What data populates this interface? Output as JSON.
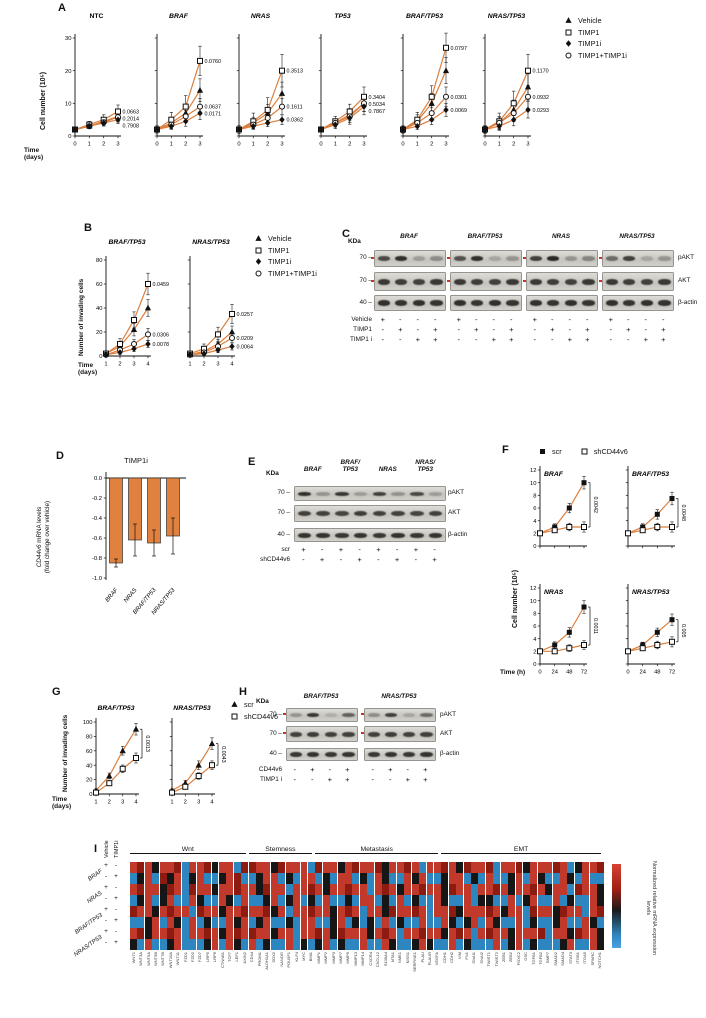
{
  "style": {
    "line": "#db7f3e",
    "bar": "#e0813f",
    "marker": "#111111",
    "heat": {
      "R": "#8e1b10",
      "r": "#c0392b",
      "k": "#161616",
      "g": "#5a5a5a",
      "b": "#2e86c1",
      "B": "#56a8e0"
    }
  },
  "panelA": {
    "label": "A",
    "ylabel": "Cell number (10⁵)",
    "xlabel1": "Time",
    "xlabel2": "(days)",
    "xticks": [
      "0",
      "1",
      "2",
      "3"
    ],
    "yticks": [
      0,
      10,
      20,
      30
    ],
    "legend": [
      {
        "label": "Vehicle",
        "m": "tri_f"
      },
      {
        "label": "TIMP1",
        "m": "sq_o"
      },
      {
        "label": "TIMP1i",
        "m": "di_f"
      },
      {
        "label": "TIMP1+TIMP1i",
        "m": "ci_o"
      }
    ],
    "charts": [
      {
        "title": "NTC",
        "italic": false,
        "series": [
          {
            "name": "Vehicle",
            "m": "tri_f",
            "v": [
              2,
              3,
              4.5,
              6
            ],
            "e": 1.5
          },
          {
            "name": "TIMP1",
            "m": "sq_o",
            "v": [
              2,
              3.5,
              5,
              7.5
            ],
            "e": 2,
            "p": "0.0663"
          },
          {
            "name": "TIMP1+TIMP1i",
            "m": "ci_o",
            "v": [
              2,
              3,
              4.2,
              5.8
            ],
            "e": 1.5,
            "p": "0.2014"
          },
          {
            "name": "TIMP1i",
            "m": "di_f",
            "v": [
              2,
              3,
              4,
              5
            ],
            "e": 1.2,
            "p": "0.7908"
          }
        ]
      },
      {
        "title": "BRAF",
        "italic": true,
        "series": [
          {
            "name": "Vehicle",
            "m": "tri_f",
            "v": [
              2,
              4,
              7,
              14
            ],
            "e": 3.5
          },
          {
            "name": "TIMP1",
            "m": "sq_o",
            "v": [
              2,
              5,
              9,
              23
            ],
            "e": 4.5,
            "p": "0.0760"
          },
          {
            "name": "TIMP1+TIMP1i",
            "m": "ci_o",
            "v": [
              2,
              3.5,
              6,
              9
            ],
            "e": 2.5,
            "p": "0.0637"
          },
          {
            "name": "TIMP1i",
            "m": "di_f",
            "v": [
              2,
              3,
              4.5,
              7
            ],
            "e": 2,
            "p": "0.0171"
          }
        ]
      },
      {
        "title": "NRAS",
        "italic": true,
        "series": [
          {
            "name": "Vehicle",
            "m": "tri_f",
            "v": [
              2,
              4,
              7,
              13
            ],
            "e": 3.5
          },
          {
            "name": "TIMP1",
            "m": "sq_o",
            "v": [
              2,
              4.5,
              8,
              20
            ],
            "e": 5,
            "p": "0.3513"
          },
          {
            "name": "TIMP1+TIMP1i",
            "m": "ci_o",
            "v": [
              2,
              3.5,
              5.5,
              9
            ],
            "e": 2.5,
            "p": "0.1611"
          },
          {
            "name": "TIMP1i",
            "m": "di_f",
            "v": [
              2,
              3,
              4,
              5
            ],
            "e": 1.5,
            "p": "0.0362"
          }
        ]
      },
      {
        "title": "TP53",
        "italic": true,
        "series": [
          {
            "name": "Vehicle",
            "m": "tri_f",
            "v": [
              2,
              4,
              6.5,
              10
            ],
            "e": 2.5
          },
          {
            "name": "TIMP1",
            "m": "sq_o",
            "v": [
              2,
              4.5,
              7.5,
              12
            ],
            "e": 3,
            "p": "0.3404"
          },
          {
            "name": "TIMP1+TIMP1i",
            "m": "ci_o",
            "v": [
              2,
              4,
              6,
              10
            ],
            "e": 2.5,
            "p": "0.5034"
          },
          {
            "name": "TIMP1i",
            "m": "di_f",
            "v": [
              2,
              3.5,
              5.5,
              9
            ],
            "e": 2.5,
            "p": "0.7867"
          }
        ]
      },
      {
        "title": "BRAF/TP53",
        "italic": true,
        "series": [
          {
            "name": "Vehicle",
            "m": "tri_f",
            "v": [
              2,
              4.5,
              10,
              20
            ],
            "e": 4
          },
          {
            "name": "TIMP1",
            "m": "sq_o",
            "v": [
              2,
              5,
              12,
              27
            ],
            "e": 4.5,
            "p": "0.0797"
          },
          {
            "name": "TIMP1+TIMP1i",
            "m": "ci_o",
            "v": [
              2,
              4,
              7,
              12
            ],
            "e": 3,
            "p": "0.0301"
          },
          {
            "name": "TIMP1i",
            "m": "di_f",
            "v": [
              2,
              3,
              5,
              8
            ],
            "e": 2,
            "p": "0.0069"
          }
        ]
      },
      {
        "title": "NRAS/TP53",
        "italic": true,
        "series": [
          {
            "name": "Vehicle",
            "m": "tri_f",
            "v": [
              2,
              4,
              8,
              15
            ],
            "e": 4
          },
          {
            "name": "TIMP1",
            "m": "sq_o",
            "v": [
              2,
              4.5,
              10,
              20
            ],
            "e": 5,
            "p": "0.1170"
          },
          {
            "name": "TIMP1+TIMP1i",
            "m": "ci_o",
            "v": [
              2,
              4,
              7,
              12
            ],
            "e": 3.5,
            "p": "0.0932"
          },
          {
            "name": "TIMP1i",
            "m": "di_f",
            "v": [
              2,
              3,
              5,
              8
            ],
            "e": 2.5,
            "p": "0.0293"
          }
        ]
      }
    ]
  },
  "panelB": {
    "label": "B",
    "ylabel": "Number of invading cells",
    "xlabel1": "Time",
    "xlabel2": "(days)",
    "xticks": [
      "1",
      "2",
      "3",
      "4"
    ],
    "yticks": [
      0,
      20,
      40,
      60,
      80
    ],
    "charts": [
      {
        "title": "BRAF/TP53",
        "series": [
          {
            "name": "Vehicle",
            "m": "tri_f",
            "v": [
              2,
              8,
              22,
              40
            ],
            "e": 7
          },
          {
            "name": "TIMP1",
            "m": "sq_o",
            "v": [
              2,
              10,
              30,
              60
            ],
            "e": 9,
            "p": "0.0459"
          },
          {
            "name": "TIMP1+TIMP1i",
            "m": "ci_o",
            "v": [
              1,
              5,
              10,
              18
            ],
            "e": 5,
            "p": "0.0306"
          },
          {
            "name": "TIMP1i",
            "m": "di_f",
            "v": [
              1,
              3,
              6,
              10
            ],
            "e": 3,
            "p": "0.0078"
          }
        ]
      },
      {
        "title": "NRAS/TP53",
        "series": [
          {
            "name": "Vehicle",
            "m": "tri_f",
            "v": [
              1,
              4,
              10,
              20
            ],
            "e": 5
          },
          {
            "name": "TIMP1",
            "m": "sq_o",
            "v": [
              2,
              6,
              18,
              35
            ],
            "e": 8,
            "p": "0.0257"
          },
          {
            "name": "TIMP1+TIMP1i",
            "m": "ci_o",
            "v": [
              1,
              3,
              8,
              15
            ],
            "e": 4,
            "p": "0.0209"
          },
          {
            "name": "TIMP1i",
            "m": "di_f",
            "v": [
              1,
              2,
              5,
              8
            ],
            "e": 3,
            "p": "0.0064"
          }
        ]
      }
    ]
  },
  "panelC": {
    "label": "C",
    "kda_title": "KDa",
    "kda": [
      "70",
      "70",
      "40"
    ],
    "band_labels": [
      "pAKT",
      "AKT",
      "β-actin"
    ],
    "groups": [
      {
        "title": "BRAF",
        "pakt": [
          0.75,
          0.9,
          0.25,
          0.35
        ]
      },
      {
        "title": "BRAF/TP53",
        "pakt": [
          0.7,
          0.9,
          0.2,
          0.3
        ]
      },
      {
        "title": "NRAS",
        "pakt": [
          0.8,
          0.95,
          0.3,
          0.4
        ]
      },
      {
        "title": "NRAS/TP53",
        "pakt": [
          0.55,
          0.8,
          0.2,
          0.3
        ]
      }
    ],
    "akt": [
      0.85,
      0.82,
      0.8,
      0.85
    ],
    "actin": [
      0.9,
      0.88,
      0.9,
      0.88
    ],
    "rows": [
      {
        "label": "Vehicle",
        "vals": [
          "+",
          "-",
          "-",
          "-"
        ]
      },
      {
        "label": "TIMP1",
        "vals": [
          "-",
          "+",
          "-",
          "+"
        ]
      },
      {
        "label": "TIMP1 i",
        "vals": [
          "-",
          "-",
          "+",
          "+"
        ]
      }
    ]
  },
  "panelD": {
    "label": "D",
    "title": "TIMP1i",
    "ylabel1": "CD44v6 mRNA levels",
    "gene_italic": "CD44v6",
    "ylabel2": "(fold change over vehicle)",
    "yticks": [
      "0.0",
      "-0.2",
      "-0.4",
      "-0.6",
      "-0.8",
      "-1.0"
    ],
    "categories": [
      "BRAF",
      "NRAS",
      "BRAF/TP53",
      "NRAS/TP53"
    ],
    "values": [
      -0.85,
      -0.62,
      -0.65,
      -0.58
    ],
    "errors": [
      0.04,
      0.16,
      0.13,
      0.18
    ]
  },
  "panelE": {
    "label": "E",
    "kda_title": "KDa",
    "kda": [
      "70",
      "70",
      "40"
    ],
    "headers": [
      [
        "BRAF"
      ],
      [
        "BRAF/",
        "TP53"
      ],
      [
        "NRAS"
      ],
      [
        "NRAS/",
        "TP53"
      ]
    ],
    "band_labels": [
      "pAKT",
      "AKT",
      "β-actin"
    ],
    "groups": [
      {
        "title": "",
        "pakt": [
          0.9,
          0.3,
          0.85,
          0.25,
          0.8,
          0.3,
          0.75,
          0.25
        ]
      }
    ],
    "akt": [
      0.8,
      0.8,
      0.78,
      0.82,
      0.8,
      0.8,
      0.78,
      0.8
    ],
    "actin": [
      0.88,
      0.88,
      0.86,
      0.88,
      0.86,
      0.88,
      0.86,
      0.88
    ],
    "rows": [
      {
        "label": "scr",
        "vals": [
          "+",
          "-",
          "+",
          "-",
          "+",
          "-",
          "+",
          "-"
        ]
      },
      {
        "label": "shCD44v6",
        "vals": [
          "-",
          "+",
          "-",
          "+",
          "-",
          "+",
          "-",
          "+"
        ]
      }
    ]
  },
  "panelF": {
    "label": "F",
    "ylabel": "Cell number (10⁵)",
    "xlabel": "Time (h)",
    "xticks": [
      "0",
      "24",
      "48",
      "72"
    ],
    "yticks": [
      0,
      2,
      4,
      6,
      8,
      10,
      12
    ],
    "legend": [
      {
        "label": "scr",
        "m": "sq_f"
      },
      {
        "label": "shCD44v6",
        "m": "sq_o"
      }
    ],
    "charts": [
      {
        "title": "BRAF",
        "p": "0.0042",
        "series": [
          {
            "name": "scr",
            "m": "sq_f",
            "v": [
              2,
              3,
              6,
              10
            ],
            "e": 1
          },
          {
            "name": "shCD44v6",
            "m": "sq_o",
            "v": [
              2,
              2.5,
              3,
              3
            ],
            "e": 0.8
          }
        ]
      },
      {
        "title": "BRAF/TP53",
        "p": "0.0048",
        "series": [
          {
            "name": "scr",
            "m": "sq_f",
            "v": [
              2,
              3,
              5,
              7.5
            ],
            "e": 1
          },
          {
            "name": "shCD44v6",
            "m": "sq_o",
            "v": [
              2,
              2.5,
              3,
              3
            ],
            "e": 0.8
          }
        ]
      },
      {
        "title": "NRAS",
        "p": "0.0011",
        "series": [
          {
            "name": "scr",
            "m": "sq_f",
            "v": [
              2,
              3,
              5,
              9
            ],
            "e": 1
          },
          {
            "name": "shCD44v6",
            "m": "sq_o",
            "v": [
              2,
              2,
              2.5,
              3
            ],
            "e": 0.7
          }
        ]
      },
      {
        "title": "NRAS/TP53",
        "p": "0.005",
        "series": [
          {
            "name": "scr",
            "m": "sq_f",
            "v": [
              2,
              3,
              5,
              7
            ],
            "e": 0.9
          },
          {
            "name": "shCD44v6",
            "m": "sq_o",
            "v": [
              2,
              2.5,
              3,
              3.5
            ],
            "e": 0.8
          }
        ]
      }
    ]
  },
  "panelG": {
    "label": "G",
    "ylabel": "Number of invading cells",
    "xlabel1": "Time",
    "xlabel2": "(days)",
    "xticks": [
      "1",
      "2",
      "3",
      "4"
    ],
    "yticks": [
      0,
      20,
      40,
      60,
      80,
      100
    ],
    "legend": [
      {
        "label": "scr",
        "m": "tri_f"
      },
      {
        "label": "shCD44v6",
        "m": "sq_o"
      }
    ],
    "charts": [
      {
        "title": "BRAF/TP53",
        "p": "0.0013",
        "series": [
          {
            "name": "scr",
            "m": "tri_f",
            "v": [
              5,
              25,
              60,
              90
            ],
            "e": 8
          },
          {
            "name": "shCD44v6",
            "m": "sq_o",
            "v": [
              2,
              15,
              35,
              50
            ],
            "e": 7
          }
        ]
      },
      {
        "title": "NRAS/TP53",
        "p": "0.0043",
        "series": [
          {
            "name": "scr",
            "m": "tri_f",
            "v": [
              5,
              15,
              40,
              70
            ],
            "e": 8
          },
          {
            "name": "shCD44v6",
            "m": "sq_o",
            "v": [
              2,
              10,
              25,
              40
            ],
            "e": 6
          }
        ]
      }
    ]
  },
  "panelH": {
    "label": "H",
    "kda_title": "KDa",
    "kda": [
      "70",
      "70",
      "40"
    ],
    "band_labels": [
      "pAKT",
      "AKT",
      "β-actin"
    ],
    "groups": [
      {
        "title": "BRAF/TP53",
        "pakt": [
          0.3,
          0.85,
          0.15,
          0.6
        ]
      },
      {
        "title": "NRAS/TP53",
        "pakt": [
          0.35,
          0.8,
          0.2,
          0.55
        ]
      }
    ],
    "akt": [
      0.8,
      0.82,
      0.8,
      0.8
    ],
    "actin": [
      0.86,
      0.88,
      0.86,
      0.88
    ],
    "rows": [
      {
        "label": "CD44v6",
        "vals": [
          "-",
          "+",
          "-",
          "+"
        ]
      },
      {
        "label": "TIMP1 i",
        "vals": [
          "-",
          "-",
          "+",
          "+"
        ]
      }
    ]
  },
  "panelI": {
    "label": "I",
    "col_sign_headers": [
      "Vehicle",
      "TIMP1i"
    ],
    "row_groups": [
      "BRAF",
      "NRAS",
      "BRAF/TP53",
      "NRAS/TP53"
    ],
    "signs": [
      [
        "+",
        "-"
      ],
      [
        "-",
        "+"
      ],
      [
        "+",
        "-"
      ],
      [
        "-",
        "+"
      ],
      [
        "+",
        "-"
      ],
      [
        "-",
        "+"
      ],
      [
        "+",
        "-"
      ],
      [
        "-",
        "+"
      ]
    ],
    "categories": [
      {
        "name": "Wnt",
        "span": 16
      },
      {
        "name": "Stemness",
        "span": 9
      },
      {
        "name": "Metastasis",
        "span": 17
      },
      {
        "name": "EMT",
        "span": 22
      }
    ],
    "genes": [
      "WNT1",
      "WNT3A",
      "WNT5A",
      "WNT5B",
      "WNT7B",
      "WNT10A",
      "WNT11",
      "FZD1",
      "FZD2",
      "FZD7",
      "LRP5",
      "LRP6",
      "CTNNB1",
      "TCF7",
      "LEF1",
      "AXIN2",
      "CD44",
      "PROM1",
      "ALDH1A1",
      "SOX2",
      "NANOG",
      "POU5F1",
      "KLF4",
      "MYC",
      "BMI1",
      "MMP1",
      "MMP2",
      "MMP3",
      "MMP7",
      "MMP9",
      "MMP13",
      "MMP14",
      "CXCR4",
      "CXCL12",
      "S100A4",
      "MTA1",
      "NME1",
      "KISS1",
      "SERPINE1",
      "PLAU",
      "PLAUR",
      "VEGFA",
      "CDH1",
      "CDH2",
      "VIM",
      "FN1",
      "SNAI1",
      "SNAI2",
      "TWIST1",
      "TWIST2",
      "ZEB1",
      "ZEB2",
      "FOXC2",
      "GSC",
      "TGFB1",
      "TGFB2",
      "BMP7",
      "SMAD2",
      "SMAD4",
      "STAT3",
      "ITGB1",
      "ITGA5",
      "SPARC",
      "NOTCH1"
    ],
    "rows": [
      "rRrkrrRbrrRkrrbRRrrkRrrrbRrrkrRrrRkrrRrbrrRrkRrrRbrrRkrrrRrbkrrR",
      "bkrbRkrbkrbbkrRbbkrrbkbrrbkbrrbkbrkbbrkrbbkrrbkbrbbkrbrkbbrkbrbb",
      "rRrrkRrbRrrkrrRrrkRrrbrrRrkrrRrrbrRrkrrRrrkRrrbrrRrkrrRrkrrbRrrk",
      "bkrbkrbbrkbbrkbrbbkrbkrbkbrbbkbrrbkbrbkbbrkbbrbkkbbrbkrbbrbkbbrk",
      "RrrkrRrrbRrrkrrRrrRkrbrrRrrkrRrbrrkRrrRrbrrRkrrrRrkrrbRrrkRrrbrR",
      "bbkrbrkbrbkbbrkrbkrbbkbrrbbkrbkbkbrbkbbrbbrkbkrbrkbbrbkbbkrbbrkb",
      "rRkrrRrbrrRrkrRrRrrkrrbrrRrkRrrrkrRrbrrRrrkrRrbrRrrkrrrRbrrkRrrk",
      "kbrbbkrbbbkrbrkbrbkbbrbkbkrbkbbrbbrkbbkrkbbrbkbbbrbkrbkbbbkrbbrk"
    ],
    "colorbar_label": "Normalized relative mRNA expression levels"
  }
}
